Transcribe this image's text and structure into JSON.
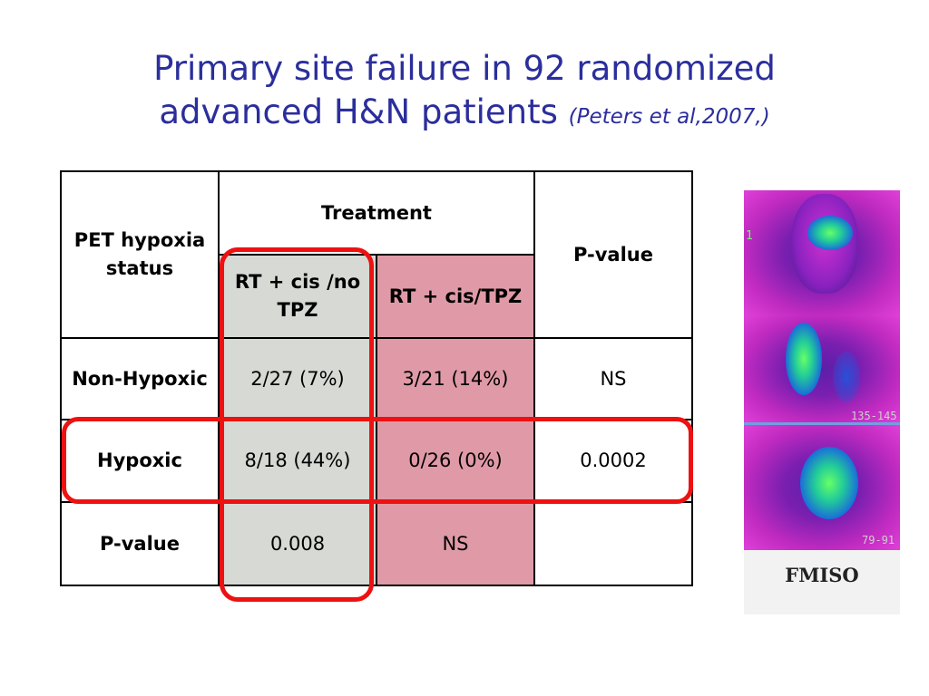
{
  "slide": {
    "title_line1": "Primary site failure in 92 randomized",
    "title_line2": "advanced H&N patients",
    "citation": "(Peters et al,2007,)"
  },
  "table": {
    "header": {
      "pet_status": "PET hypoxia status",
      "treatment": "Treatment",
      "p_value": "P-value",
      "arm_a": "RT + cis /no TPZ",
      "arm_b": "RT + cis/TPZ"
    },
    "rows": [
      {
        "label": "Non-Hypoxic",
        "arm_a": "2/27 (7%)",
        "arm_b": "3/21 (14%)",
        "p": "NS"
      },
      {
        "label": "Hypoxic",
        "arm_a": "8/18 (44%)",
        "arm_b": "0/26 (0%)",
        "p": "0.0002"
      },
      {
        "label": "P-value",
        "arm_a": "0.008",
        "arm_b": "NS",
        "p": ""
      }
    ]
  },
  "image": {
    "label": "FMISO",
    "coord_top": "135-145",
    "coord_bottom": "79-91",
    "tick_char": "1"
  },
  "colors": {
    "title": "#2b2e9c",
    "arm_a_bg": "#d6d9d4",
    "arm_b_bg": "#e09aa7",
    "highlight": "#ee1111"
  }
}
